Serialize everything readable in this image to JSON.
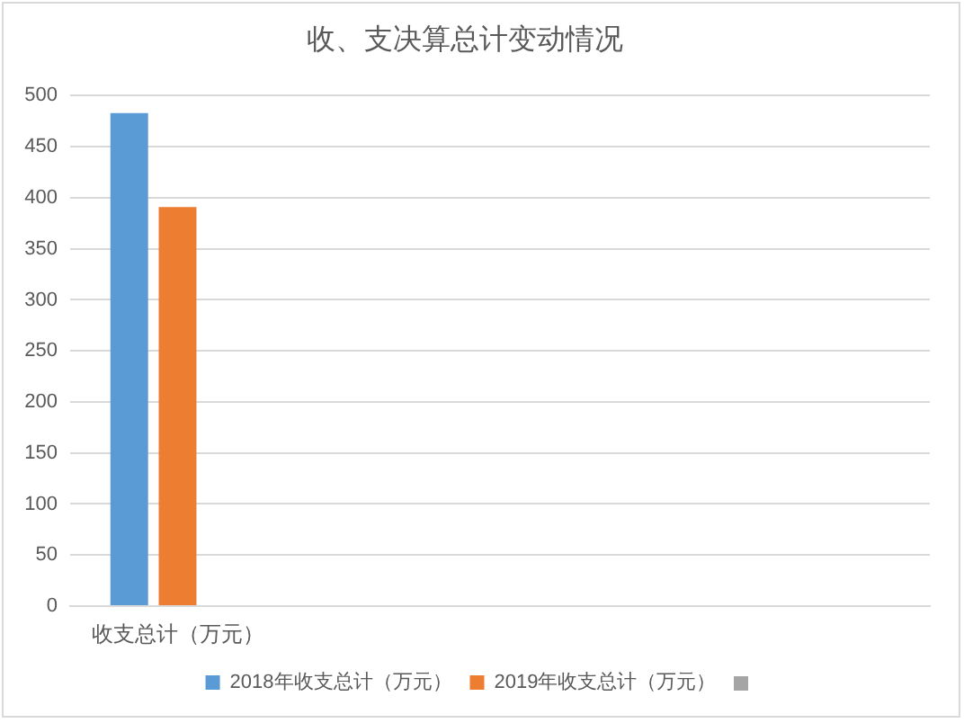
{
  "chart_data": {
    "type": "bar",
    "title": "收、支决算总计变动情况",
    "categories": [
      "收支总计（万元）",
      null,
      null,
      null
    ],
    "series": [
      {
        "name": "2018年收支总计（万元）",
        "color": "#5b9bd5",
        "values": [
          483,
          null,
          null,
          null
        ]
      },
      {
        "name": "2019年收支总计（万元）",
        "color": "#ed7d31",
        "values": [
          391,
          null,
          null,
          null
        ]
      },
      {
        "color": "#a5a5a5",
        "values": [
          null,
          null,
          null,
          null
        ]
      }
    ],
    "ylim": [
      0,
      500
    ],
    "yticks": [
      0,
      50,
      100,
      150,
      200,
      250,
      300,
      350,
      400,
      450,
      500
    ],
    "grid": "y",
    "legend": "bottom"
  }
}
